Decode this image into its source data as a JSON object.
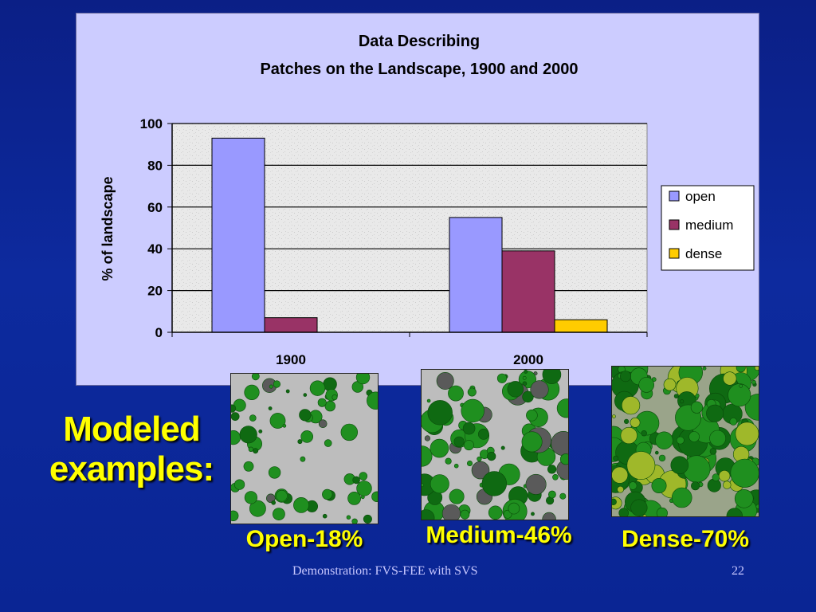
{
  "chart_data": {
    "type": "bar",
    "title_lines": [
      "Data Describing",
      "Patches on the Landscape, 1900 and 2000"
    ],
    "ylabel": "% of landscape",
    "categories": [
      "1900",
      "2000"
    ],
    "ylim": [
      0,
      100
    ],
    "yticks": [
      0,
      20,
      40,
      60,
      80,
      100
    ],
    "grid": true,
    "legend_position": "right",
    "series": [
      {
        "name": "open",
        "values": [
          93,
          55
        ],
        "color": "#9999ff"
      },
      {
        "name": "medium",
        "values": [
          7,
          39
        ],
        "color": "#993366"
      },
      {
        "name": "dense",
        "values": [
          0,
          6
        ],
        "color": "#ffcc00"
      }
    ]
  },
  "slide": {
    "heading_line1": "Modeled",
    "heading_line2": "examples:",
    "examples": [
      {
        "caption": "Open-18%"
      },
      {
        "caption": "Medium-46%"
      },
      {
        "caption": "Dense-70%"
      }
    ],
    "footer": "Demonstration: FVS-FEE with SVS",
    "slide_number": "22"
  },
  "colors": {
    "background": "#0d2a9e",
    "chart_background": "#ccccff",
    "caption_text": "#ffff00",
    "tree_green": "#1a8a1a",
    "tree_gray": "#555555"
  }
}
